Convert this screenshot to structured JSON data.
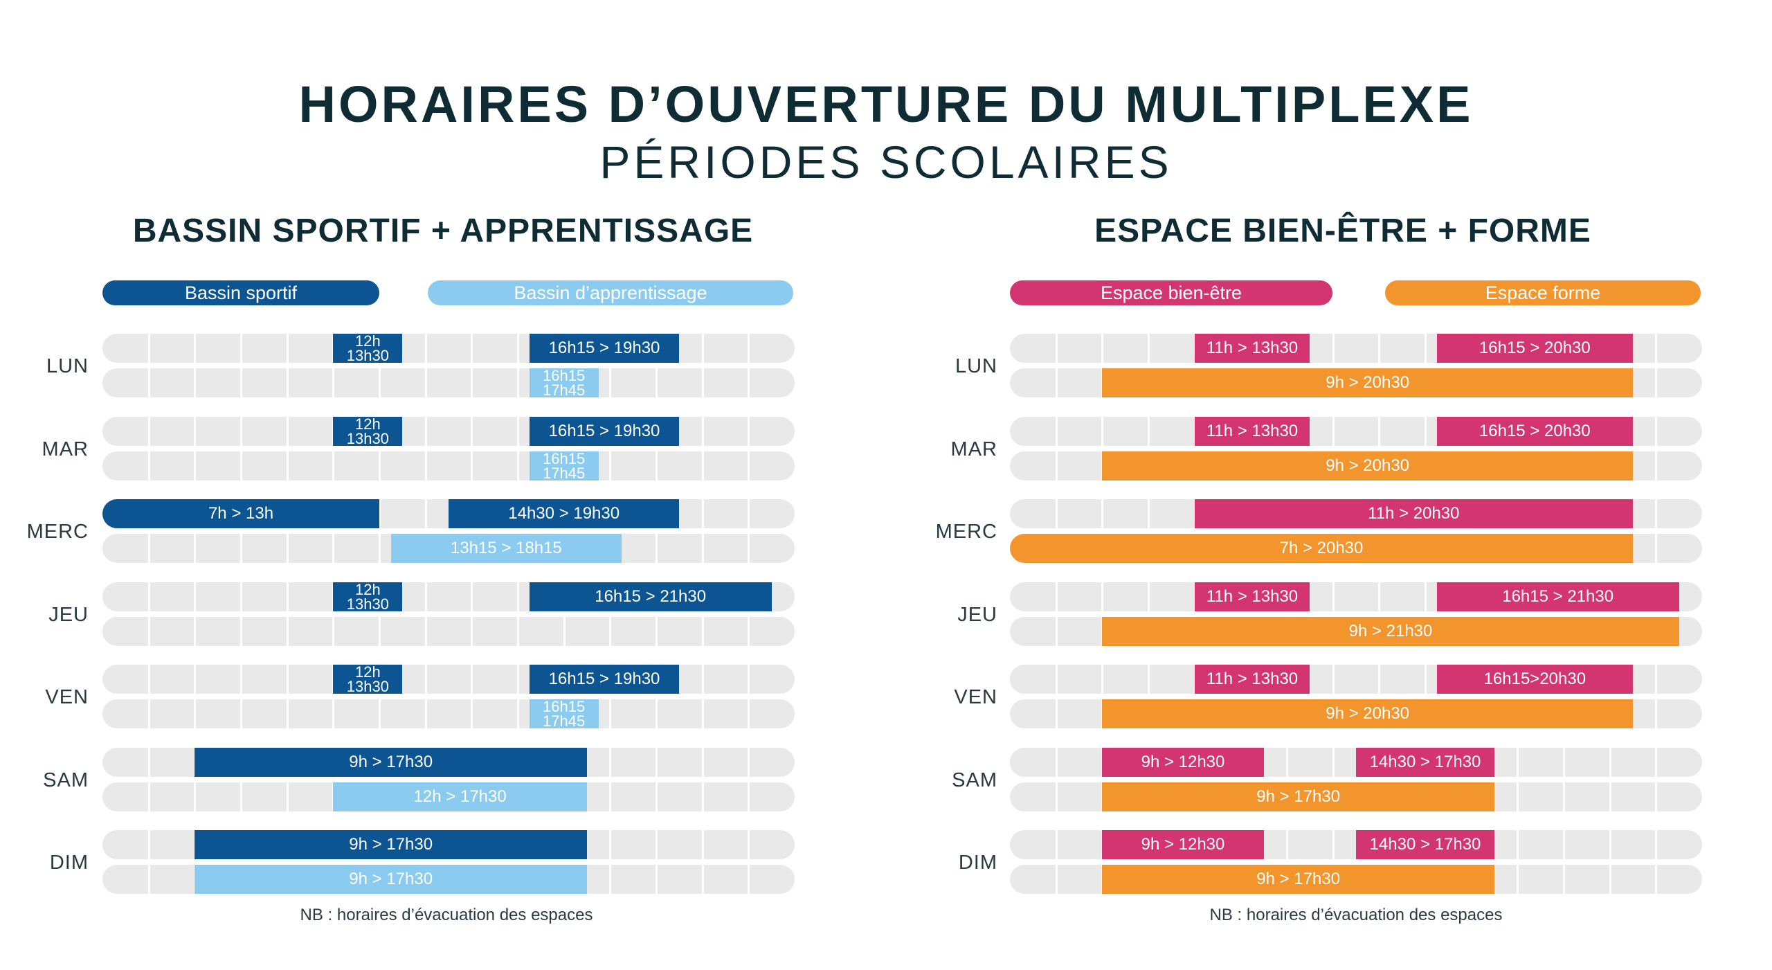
{
  "header": {
    "title": "HORAIRES D’OUVERTURE DU MULTIPLEXE",
    "subtitle": "PÉRIODES SCOLAIRES"
  },
  "colors": {
    "bassin_sportif": "#0c5592",
    "bassin_apprentissage": "#8ccbf0",
    "espace_bien_etre": "#d2356f",
    "espace_forme": "#f1952c",
    "track": "#e9e9ea"
  },
  "chart_data": [
    {
      "type": "bar",
      "orientation": "horizontal-range",
      "title": "BASSIN SPORTIF + APPRENTISSAGE",
      "xlim": [
        "7h",
        "22h"
      ],
      "categories": [
        "LUN",
        "MAR",
        "MERC",
        "JEU",
        "VEN",
        "SAM",
        "DIM"
      ],
      "series": [
        {
          "name": "Bassin sportif",
          "color": "#0c5592",
          "ranges": [
            [
              {
                "start": 12.0,
                "end": 13.5,
                "label": "12h 13h30",
                "lines": [
                  "12h",
                  "13h30"
                ]
              },
              {
                "start": 16.25,
                "end": 19.5,
                "label": "16h15 > 19h30"
              }
            ],
            [
              {
                "start": 12.0,
                "end": 13.5,
                "label": "12h 13h30",
                "lines": [
                  "12h",
                  "13h30"
                ]
              },
              {
                "start": 16.25,
                "end": 19.5,
                "label": "16h15 > 19h30"
              }
            ],
            [
              {
                "start": 7.0,
                "end": 13.0,
                "label": "7h > 13h"
              },
              {
                "start": 14.5,
                "end": 19.5,
                "label": "14h30 > 19h30"
              }
            ],
            [
              {
                "start": 12.0,
                "end": 13.5,
                "label": "12h 13h30",
                "lines": [
                  "12h",
                  "13h30"
                ]
              },
              {
                "start": 16.25,
                "end": 21.5,
                "label": "16h15 > 21h30"
              }
            ],
            [
              {
                "start": 12.0,
                "end": 13.5,
                "label": "12h 13h30",
                "lines": [
                  "12h",
                  "13h30"
                ]
              },
              {
                "start": 16.25,
                "end": 19.5,
                "label": "16h15 > 19h30"
              }
            ],
            [
              {
                "start": 9.0,
                "end": 17.5,
                "label": "9h > 17h30"
              }
            ],
            [
              {
                "start": 9.0,
                "end": 17.5,
                "label": "9h > 17h30"
              }
            ]
          ]
        },
        {
          "name": "Bassin d’apprentissage",
          "color": "#8ccbf0",
          "ranges": [
            [
              {
                "start": 16.25,
                "end": 17.75,
                "label": "16h15 17h45",
                "lines": [
                  "16h15",
                  "17h45"
                ]
              }
            ],
            [
              {
                "start": 16.25,
                "end": 17.75,
                "label": "16h15 17h45",
                "lines": [
                  "16h15",
                  "17h45"
                ]
              }
            ],
            [
              {
                "start": 13.25,
                "end": 18.25,
                "label": "13h15 > 18h15"
              }
            ],
            [],
            [
              {
                "start": 16.25,
                "end": 17.75,
                "label": "16h15 17h45",
                "lines": [
                  "16h15",
                  "17h45"
                ]
              }
            ],
            [
              {
                "start": 12.0,
                "end": 17.5,
                "label": "12h > 17h30"
              }
            ],
            [
              {
                "start": 9.0,
                "end": 17.5,
                "label": "9h > 17h30"
              }
            ]
          ]
        }
      ],
      "note": "NB : horaires d’évacuation des espaces"
    },
    {
      "type": "bar",
      "orientation": "horizontal-range",
      "title": "ESPACE BIEN-ÊTRE + FORME",
      "xlim": [
        "7h",
        "22h"
      ],
      "categories": [
        "LUN",
        "MAR",
        "MERC",
        "JEU",
        "VEN",
        "SAM",
        "DIM"
      ],
      "series": [
        {
          "name": "Espace bien-être",
          "color": "#d2356f",
          "ranges": [
            [
              {
                "start": 11.0,
                "end": 13.5,
                "label": "11h > 13h30"
              },
              {
                "start": 16.25,
                "end": 20.5,
                "label": "16h15 > 20h30"
              }
            ],
            [
              {
                "start": 11.0,
                "end": 13.5,
                "label": "11h > 13h30"
              },
              {
                "start": 16.25,
                "end": 20.5,
                "label": "16h15 > 20h30"
              }
            ],
            [
              {
                "start": 11.0,
                "end": 20.5,
                "label": "11h > 20h30"
              }
            ],
            [
              {
                "start": 11.0,
                "end": 13.5,
                "label": "11h > 13h30"
              },
              {
                "start": 16.25,
                "end": 21.5,
                "label": "16h15 > 21h30"
              }
            ],
            [
              {
                "start": 11.0,
                "end": 13.5,
                "label": "11h > 13h30"
              },
              {
                "start": 16.25,
                "end": 20.5,
                "label": "16h15>20h30"
              }
            ],
            [
              {
                "start": 9.0,
                "end": 12.5,
                "label": "9h > 12h30"
              },
              {
                "start": 14.5,
                "end": 17.5,
                "label": "14h30 > 17h30"
              }
            ],
            [
              {
                "start": 9.0,
                "end": 12.5,
                "label": "9h > 12h30"
              },
              {
                "start": 14.5,
                "end": 17.5,
                "label": "14h30 > 17h30"
              }
            ]
          ]
        },
        {
          "name": "Espace forme",
          "color": "#f1952c",
          "ranges": [
            [
              {
                "start": 9.0,
                "end": 20.5,
                "label": "9h > 20h30"
              }
            ],
            [
              {
                "start": 9.0,
                "end": 20.5,
                "label": "9h > 20h30"
              }
            ],
            [
              {
                "start": 7.0,
                "end": 20.5,
                "label": "7h > 20h30"
              }
            ],
            [
              {
                "start": 9.0,
                "end": 21.5,
                "label": "9h > 21h30"
              }
            ],
            [
              {
                "start": 9.0,
                "end": 20.5,
                "label": "9h > 20h30"
              }
            ],
            [
              {
                "start": 9.0,
                "end": 17.5,
                "label": "9h > 17h30"
              }
            ],
            [
              {
                "start": 9.0,
                "end": 17.5,
                "label": "9h > 17h30"
              }
            ]
          ]
        }
      ],
      "note": "NB : horaires d’évacuation des espaces"
    }
  ]
}
